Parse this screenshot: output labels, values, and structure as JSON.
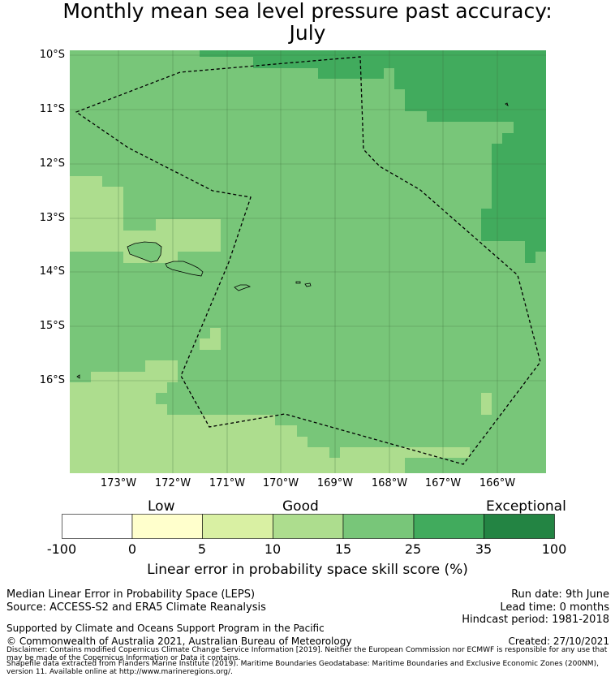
{
  "title": {
    "line1": "Monthly mean sea level pressure past accuracy:",
    "line2": "July"
  },
  "latitudes": [
    "10°S",
    "11°S",
    "12°S",
    "13°S",
    "14°S",
    "15°S",
    "16°S"
  ],
  "longitudes": [
    "173°W",
    "172°W",
    "171°W",
    "170°W",
    "169°W",
    "168°W",
    "167°W",
    "166°W"
  ],
  "colorbar": {
    "categories": [
      "Low",
      "Good",
      "Exceptional"
    ],
    "ticks": [
      "-100",
      "0",
      "5",
      "10",
      "15",
      "25",
      "35",
      "100"
    ],
    "colors": [
      "#ffffff",
      "#ffffcc",
      "#d9f0a3",
      "#addd8e",
      "#78c679",
      "#41ab5d",
      "#238443"
    ],
    "label": "Linear error in probability space skill score (%)"
  },
  "info": {
    "method": "Median Linear Error in Probability Space (LEPS)",
    "source": "Source: ACCESS-S2 and ERA5 Climate Reanalysis",
    "run_date": "Run date: 9th June",
    "lead_time": "Lead time: 0 months",
    "hindcast": "Hindcast period: 1981-2018",
    "support": "Supported by Climate and Oceans Support Program in the Pacific",
    "copyright": "© Commonwealth of Australia 2021, Australian Bureau of Meteorology",
    "created": "Created: 27/10/2021",
    "disclaimer": "Disclaimer: Contains modified Copernicus Climate Change Service Information [2019]. Neither the European Commission nor ECMWF is responsible for any use that may be made of the Copernicus Information or Data it contains.",
    "shapefile": "Shapefile data extracted from Flanders Marine Institute (2019). Maritime Boundaries Geodatabase: Maritime Boundaries and Exclusive Economic Zones (200NM), version 11. Available online at http://www.marineregions.org/."
  }
}
